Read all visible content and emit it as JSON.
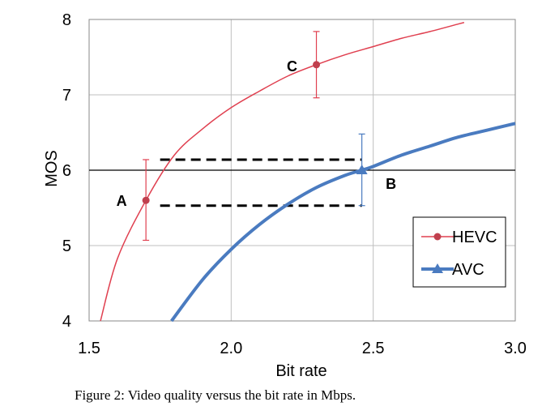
{
  "caption": "Figure 2: Video quality versus the bit rate in Mbps.",
  "chart_data": {
    "type": "line",
    "title": "",
    "xlabel": "Bit rate",
    "ylabel": "MOS",
    "xlim": [
      1.5,
      3.0
    ],
    "ylim": [
      4,
      8
    ],
    "xticks": [
      "1.5",
      "2.0",
      "2.5",
      "3.0"
    ],
    "yticks": [
      "4",
      "5",
      "6",
      "7",
      "8"
    ],
    "grid": true,
    "legend_position": "bottom-right",
    "series": [
      {
        "name": "HEVC",
        "color": "#e04050",
        "marker": "circle",
        "x": [
          1.54,
          1.6,
          1.7,
          1.8,
          1.9,
          2.0,
          2.1,
          2.2,
          2.3,
          2.4,
          2.5,
          2.6,
          2.7,
          2.8,
          2.82
        ],
        "y": [
          4.0,
          4.83,
          5.6,
          6.2,
          6.55,
          6.83,
          7.05,
          7.25,
          7.4,
          7.53,
          7.64,
          7.75,
          7.84,
          7.94,
          7.96
        ]
      },
      {
        "name": "AVC",
        "color": "#4a7bc0",
        "marker": "triangle",
        "x": [
          1.79,
          1.9,
          2.0,
          2.1,
          2.2,
          2.3,
          2.4,
          2.46,
          2.5,
          2.6,
          2.7,
          2.8,
          2.9,
          3.0
        ],
        "y": [
          4.0,
          4.55,
          4.95,
          5.28,
          5.55,
          5.77,
          5.93,
          6.0,
          6.05,
          6.2,
          6.32,
          6.44,
          6.53,
          6.62
        ]
      }
    ],
    "points": [
      {
        "label": "A",
        "x": 1.7,
        "y": 5.6,
        "err_low": 5.07,
        "err_high": 6.14,
        "series": "HEVC"
      },
      {
        "label": "C",
        "x": 2.3,
        "y": 7.4,
        "err_low": 6.96,
        "err_high": 7.84,
        "series": "HEVC"
      },
      {
        "label": "B",
        "x": 2.46,
        "y": 6.0,
        "err_low": 5.53,
        "err_high": 6.48,
        "series": "AVC"
      }
    ],
    "reference_line": {
      "y": 6.0
    },
    "dashed_lines": [
      {
        "y": 6.14,
        "x_start": 1.75,
        "x_end": 2.46
      },
      {
        "y": 5.53,
        "x_start": 1.75,
        "x_end": 2.46
      }
    ]
  }
}
